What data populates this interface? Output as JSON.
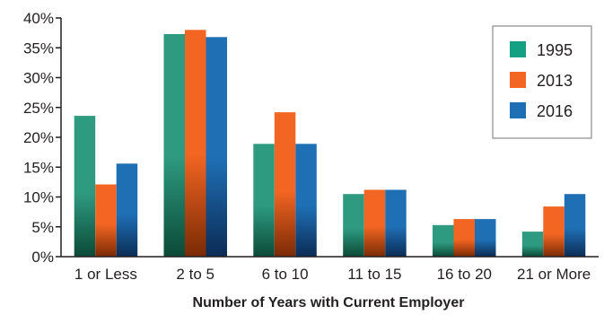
{
  "chart_data": {
    "type": "bar",
    "title": "",
    "xlabel": "Number of Years with Current Employer",
    "ylabel": "",
    "ylim": [
      0,
      40
    ],
    "y_ticks": [
      "0%",
      "5%",
      "10%",
      "15%",
      "20%",
      "25%",
      "30%",
      "35%",
      "40%"
    ],
    "y_tick_values": [
      0,
      5,
      10,
      15,
      20,
      25,
      30,
      35,
      40
    ],
    "categories": [
      "1 or Less",
      "2 to 5",
      "6 to 10",
      "11 to 15",
      "16 to 20",
      "21 or More"
    ],
    "series": [
      {
        "name": "1995",
        "color": "#2e9a80",
        "values": [
          23.6,
          37.3,
          18.9,
          10.5,
          5.3,
          4.2
        ]
      },
      {
        "name": "2013",
        "color": "#f26522",
        "values": [
          12.1,
          38.0,
          24.2,
          11.2,
          6.3,
          8.4
        ]
      },
      {
        "name": "2016",
        "color": "#1f6fb5",
        "values": [
          15.6,
          36.8,
          18.9,
          11.2,
          6.3,
          10.5
        ]
      }
    ],
    "grid": false,
    "legend_position": "top-right"
  }
}
